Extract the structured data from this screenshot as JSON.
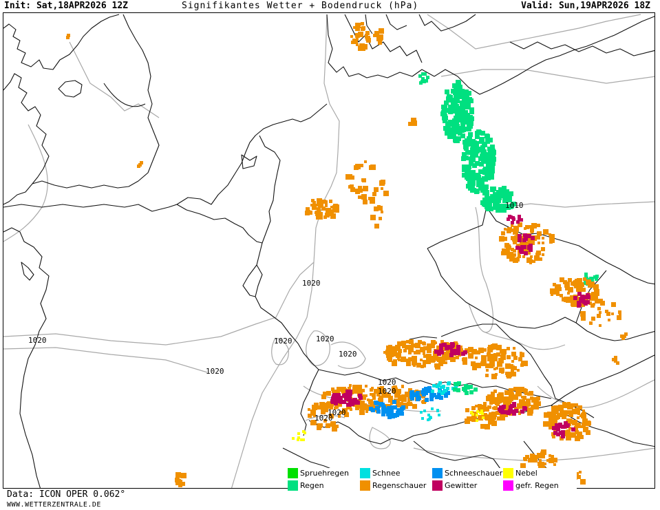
{
  "header": {
    "init": "Init: Sat,18APR2026 12Z",
    "title": "Signifikantes Wetter + Bodendruck (hPa)",
    "valid": "Valid: Sun,19APR2026 18Z"
  },
  "isobar_labels": [
    "1010",
    "1020",
    "1020",
    "1020",
    "1020",
    "1020",
    "1020",
    "1020",
    "1020",
    "1020",
    "1020"
  ],
  "legend": [
    {
      "label": "Spruehregen",
      "color": "#00e000"
    },
    {
      "label": "Regen",
      "color": "#00e080"
    },
    {
      "label": "Schnee",
      "color": "#00e0e0"
    },
    {
      "label": "Regenschauer",
      "color": "#f09000"
    },
    {
      "label": "Schneeschauer",
      "color": "#0090f0"
    },
    {
      "label": "Gewitter",
      "color": "#c00060"
    },
    {
      "label": "Nebel",
      "color": "#ffff00"
    },
    {
      "label": "gefr. Regen",
      "color": "#ff00ff"
    }
  ],
  "footer": {
    "source": "Data: ICON OPER 0.062°",
    "site": "WWW.WETTERZENTRALE.DE"
  }
}
